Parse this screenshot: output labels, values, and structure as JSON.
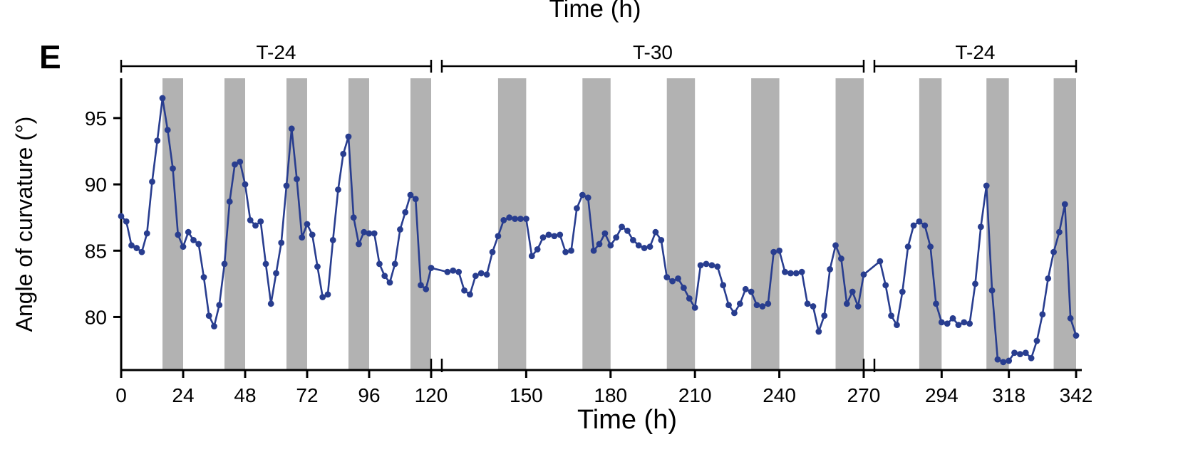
{
  "labels": {
    "panel": "E",
    "top_title": "Time (h)"
  },
  "chart_data": {
    "type": "line",
    "title": "",
    "xlabel": "Time (h)",
    "ylabel": "Angle of curvature (°)",
    "ylim": [
      76,
      98
    ],
    "yticks": [
      80,
      85,
      90,
      95
    ],
    "grid": false,
    "legend": "none",
    "x_segments": [
      {
        "label": "T-24",
        "t0": 0,
        "t1": 120,
        "fx0": 0.0,
        "fx1": 0.3246,
        "ticks": [
          0,
          24,
          48,
          72,
          96,
          120
        ]
      },
      {
        "label": "T-30",
        "t0": 120,
        "t1": 270,
        "fx0": 0.3358,
        "fx1": 0.7776,
        "ticks": [
          150,
          180,
          210,
          240,
          270
        ]
      },
      {
        "label": "T-24",
        "t0": 270,
        "t1": 342,
        "fx0": 0.7888,
        "fx1": 1.0,
        "ticks": [
          294,
          318,
          342
        ]
      }
    ],
    "dark_bars": [
      [
        16,
        24
      ],
      [
        40,
        48
      ],
      [
        64,
        72
      ],
      [
        88,
        96
      ],
      [
        112,
        120
      ],
      [
        140,
        150
      ],
      [
        170,
        180
      ],
      [
        200,
        210
      ],
      [
        230,
        240
      ],
      [
        260,
        270
      ],
      [
        286,
        294
      ],
      [
        310,
        318
      ],
      [
        334,
        342
      ]
    ],
    "series": [
      {
        "name": "angle-of-curvature",
        "x": [
          0,
          2,
          4,
          6,
          8,
          10,
          12,
          14,
          16,
          18,
          20,
          22,
          24,
          26,
          28,
          30,
          32,
          34,
          36,
          38,
          40,
          42,
          44,
          46,
          48,
          50,
          52,
          54,
          56,
          58,
          60,
          62,
          64,
          66,
          68,
          70,
          72,
          74,
          76,
          78,
          80,
          82,
          84,
          86,
          88,
          90,
          92,
          94,
          96,
          98,
          100,
          102,
          104,
          106,
          108,
          110,
          112,
          114,
          116,
          118,
          120,
          122,
          124,
          126,
          128,
          130,
          132,
          134,
          136,
          138,
          140,
          142,
          144,
          146,
          148,
          150,
          152,
          154,
          156,
          158,
          160,
          162,
          164,
          166,
          168,
          170,
          172,
          174,
          176,
          178,
          180,
          182,
          184,
          186,
          188,
          190,
          192,
          194,
          196,
          198,
          200,
          202,
          204,
          206,
          208,
          210,
          212,
          214,
          216,
          218,
          220,
          222,
          224,
          226,
          228,
          230,
          232,
          234,
          236,
          238,
          240,
          242,
          244,
          246,
          248,
          250,
          252,
          254,
          256,
          258,
          260,
          262,
          264,
          266,
          268,
          270,
          272,
          274,
          276,
          278,
          280,
          282,
          284,
          286,
          288,
          290,
          292,
          294,
          296,
          298,
          300,
          302,
          304,
          306,
          308,
          310,
          312,
          314,
          316,
          318,
          320,
          322,
          324,
          326,
          328,
          330,
          332,
          334,
          336,
          338,
          340,
          342
        ],
        "y": [
          87.6,
          87.2,
          85.4,
          85.2,
          84.9,
          86.3,
          90.2,
          93.3,
          96.5,
          94.1,
          91.2,
          86.2,
          85.3,
          86.4,
          85.8,
          85.5,
          83.0,
          80.1,
          79.3,
          80.9,
          84.0,
          88.7,
          91.5,
          91.7,
          90.0,
          87.3,
          86.9,
          87.2,
          84.0,
          81.0,
          83.3,
          85.6,
          89.9,
          94.2,
          90.4,
          86.0,
          87.0,
          86.2,
          83.8,
          81.5,
          81.7,
          85.8,
          89.6,
          92.3,
          93.6,
          87.5,
          85.5,
          86.4,
          86.3,
          86.3,
          84.0,
          83.1,
          82.6,
          84.0,
          86.6,
          87.9,
          89.2,
          88.9,
          82.4,
          82.1,
          83.7,
          83.4,
          83.5,
          83.4,
          82.0,
          81.7,
          83.1,
          83.3,
          83.2,
          84.9,
          86.1,
          87.3,
          87.5,
          87.4,
          87.4,
          87.4,
          84.6,
          85.1,
          86.0,
          86.2,
          86.1,
          86.2,
          84.9,
          85.0,
          88.2,
          89.2,
          89.0,
          85.0,
          85.5,
          86.3,
          85.4,
          86.0,
          86.8,
          86.5,
          85.8,
          85.4,
          85.2,
          85.3,
          86.4,
          85.8,
          83.0,
          82.7,
          82.9,
          82.2,
          81.4,
          80.7,
          83.9,
          84.0,
          83.9,
          83.8,
          82.4,
          80.9,
          80.3,
          81.0,
          82.1,
          81.9,
          80.9,
          80.8,
          81.0,
          84.9,
          85.0,
          83.4,
          83.3,
          83.3,
          83.4,
          81.0,
          80.8,
          78.9,
          80.1,
          83.6,
          85.4,
          84.4,
          81.0,
          81.9,
          80.8,
          83.2,
          84.2,
          82.4,
          80.1,
          79.4,
          81.9,
          85.3,
          86.9,
          87.2,
          86.9,
          85.3,
          81.0,
          79.6,
          79.5,
          79.9,
          79.4,
          79.6,
          79.5,
          82.5,
          86.8,
          89.9,
          82.0,
          76.8,
          76.6,
          76.7,
          77.3,
          77.2,
          77.3,
          76.9,
          78.2,
          80.2,
          82.9,
          84.9,
          86.4,
          88.5,
          79.9,
          78.6
        ]
      }
    ],
    "colors": {
      "line": "#283d8f",
      "marker": "#283d8f",
      "dark_bar": "#b2b2b2",
      "axis": "#000000"
    }
  }
}
